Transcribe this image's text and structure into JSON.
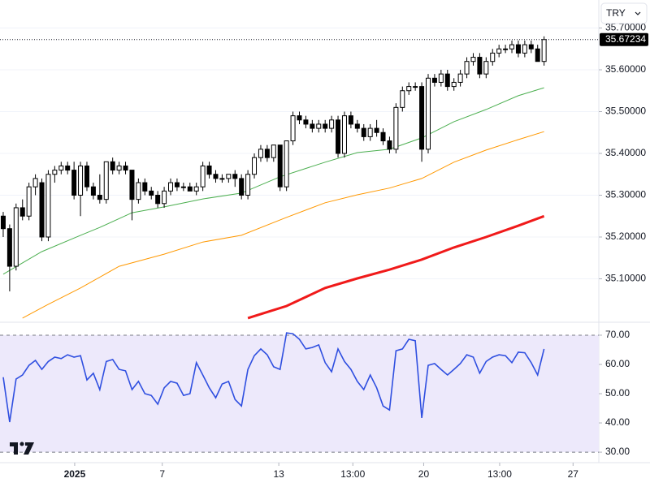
{
  "chart_data": [
    {
      "type": "candlestick",
      "currency": "TRY",
      "last_value": 35.67234,
      "up_color": "#ffffff",
      "down_color": "#000000",
      "outline_color": "#000000",
      "xlim": [
        -0.5,
        92.5
      ],
      "ylim": [
        35.0,
        35.767
      ],
      "yticks": [
        {
          "value": 35.1,
          "label": "35.10000"
        },
        {
          "value": 35.2,
          "label": "35.20000"
        },
        {
          "value": 35.3,
          "label": "35.30000"
        },
        {
          "value": 35.4,
          "label": "35.40000"
        },
        {
          "value": 35.5,
          "label": "35.50000"
        },
        {
          "value": 35.6,
          "label": "35.60000"
        },
        {
          "value": 35.7,
          "label": "35.70000"
        }
      ],
      "grid": true,
      "x": [
        0,
        1,
        2,
        3,
        4,
        5,
        6,
        7,
        8,
        9,
        10,
        11,
        12,
        13,
        14,
        15,
        16,
        17,
        18,
        19,
        20,
        21,
        22,
        23,
        24,
        25,
        26,
        27,
        28,
        29,
        30,
        31,
        32,
        33,
        34,
        35,
        36,
        37,
        38,
        39,
        40,
        41,
        42,
        43,
        44,
        45,
        46,
        47,
        48,
        49,
        50,
        51,
        52,
        53,
        54,
        55,
        56,
        57,
        58,
        59,
        60,
        61,
        62,
        63,
        64,
        65,
        66,
        67,
        68,
        69,
        70,
        71,
        72,
        73,
        74,
        75,
        76,
        77,
        78,
        79,
        80,
        81,
        82,
        83,
        84
      ],
      "open": [
        35.25,
        35.22,
        35.13,
        35.27,
        35.25,
        35.32,
        35.33,
        35.2,
        35.35,
        35.36,
        35.37,
        35.36,
        35.3,
        35.37,
        35.32,
        35.3,
        35.29,
        35.38,
        35.36,
        35.37,
        35.36,
        35.29,
        35.33,
        35.31,
        35.3,
        35.28,
        35.31,
        35.33,
        35.32,
        35.32,
        35.31,
        35.32,
        35.37,
        35.35,
        35.34,
        35.34,
        35.35,
        35.34,
        35.3,
        35.35,
        35.39,
        35.41,
        35.39,
        35.42,
        35.32,
        35.43,
        35.49,
        35.48,
        35.47,
        35.46,
        35.47,
        35.46,
        35.48,
        35.4,
        35.49,
        35.47,
        35.46,
        35.44,
        35.46,
        35.45,
        35.43,
        35.41,
        35.51,
        35.55,
        35.56,
        35.56,
        35.41,
        35.58,
        35.57,
        35.59,
        35.56,
        35.57,
        35.59,
        35.62,
        35.63,
        35.59,
        35.62,
        35.64,
        35.65,
        35.65,
        35.66,
        35.64,
        35.66,
        35.65,
        35.62
      ],
      "high": [
        35.26,
        35.23,
        35.28,
        35.29,
        35.33,
        35.35,
        35.34,
        35.36,
        35.37,
        35.38,
        35.38,
        35.38,
        35.38,
        35.38,
        35.33,
        35.35,
        35.38,
        35.39,
        35.38,
        35.38,
        35.36,
        35.34,
        35.34,
        35.32,
        35.31,
        35.32,
        35.34,
        35.34,
        35.33,
        35.33,
        35.33,
        35.38,
        35.38,
        35.36,
        35.35,
        35.35,
        35.36,
        35.35,
        35.36,
        35.4,
        35.42,
        35.42,
        35.42,
        35.42,
        35.43,
        35.5,
        35.5,
        35.49,
        35.48,
        35.48,
        35.48,
        35.49,
        35.49,
        35.5,
        35.5,
        35.48,
        35.47,
        35.47,
        35.48,
        35.46,
        35.44,
        35.52,
        35.56,
        35.57,
        35.57,
        35.57,
        35.59,
        35.59,
        35.6,
        35.6,
        35.58,
        35.6,
        35.63,
        35.64,
        35.64,
        35.63,
        35.65,
        35.66,
        35.66,
        35.67,
        35.67,
        35.67,
        35.67,
        35.66,
        35.68
      ],
      "low": [
        35.2,
        35.07,
        35.12,
        35.24,
        35.24,
        35.3,
        35.19,
        35.19,
        35.33,
        35.35,
        35.35,
        35.29,
        35.25,
        35.31,
        35.29,
        35.28,
        35.28,
        35.35,
        35.35,
        35.35,
        35.24,
        35.28,
        35.3,
        35.29,
        35.27,
        35.27,
        35.3,
        35.31,
        35.31,
        35.31,
        35.3,
        35.31,
        35.34,
        35.33,
        35.33,
        35.33,
        35.32,
        35.29,
        35.29,
        35.34,
        35.38,
        35.38,
        35.38,
        35.31,
        35.31,
        35.42,
        35.47,
        35.46,
        35.45,
        35.45,
        35.45,
        35.45,
        35.39,
        35.39,
        35.46,
        35.45,
        35.43,
        35.43,
        35.44,
        35.42,
        35.4,
        35.4,
        35.5,
        35.54,
        35.55,
        35.38,
        35.4,
        35.56,
        35.56,
        35.55,
        35.55,
        35.56,
        35.58,
        35.61,
        35.58,
        35.58,
        35.61,
        35.63,
        35.64,
        35.64,
        35.63,
        35.63,
        35.64,
        35.62,
        35.61
      ],
      "close": [
        35.22,
        35.13,
        35.27,
        35.25,
        35.32,
        35.34,
        35.2,
        35.35,
        35.36,
        35.37,
        35.36,
        35.3,
        35.37,
        35.32,
        35.3,
        35.29,
        35.38,
        35.36,
        35.37,
        35.36,
        35.29,
        35.33,
        35.31,
        35.3,
        35.28,
        35.31,
        35.33,
        35.32,
        35.32,
        35.31,
        35.32,
        35.37,
        35.35,
        35.34,
        35.34,
        35.35,
        35.34,
        35.3,
        35.35,
        35.39,
        35.41,
        35.39,
        35.42,
        35.32,
        35.43,
        35.49,
        35.48,
        35.47,
        35.46,
        35.47,
        35.46,
        35.48,
        35.4,
        35.49,
        35.47,
        35.46,
        35.44,
        35.46,
        35.45,
        35.43,
        35.41,
        35.51,
        35.55,
        35.56,
        35.56,
        35.41,
        35.58,
        35.57,
        35.59,
        35.56,
        35.57,
        35.59,
        35.62,
        35.63,
        35.59,
        35.62,
        35.64,
        35.65,
        35.65,
        35.66,
        35.64,
        35.66,
        35.65,
        35.62,
        35.67234
      ],
      "overlays": [
        {
          "color": "#4caf50",
          "width": 1,
          "x": [
            0,
            6,
            12,
            15,
            20,
            25,
            31,
            37,
            43,
            50,
            55,
            60,
            65,
            70,
            75,
            80,
            84
          ],
          "values": [
            35.111,
            35.165,
            35.204,
            35.223,
            35.258,
            35.272,
            35.291,
            35.305,
            35.344,
            35.379,
            35.402,
            35.41,
            35.437,
            35.476,
            35.505,
            35.538,
            35.557
          ]
        },
        {
          "color": "#ff9800",
          "width": 1,
          "x": [
            3,
            7,
            12,
            18,
            25,
            31,
            37,
            44,
            50,
            55,
            60,
            65,
            70,
            75,
            80,
            84
          ],
          "values": [
            35.006,
            35.039,
            35.078,
            35.13,
            35.159,
            35.188,
            35.204,
            35.247,
            35.282,
            35.301,
            35.317,
            35.34,
            35.379,
            35.408,
            35.433,
            35.452
          ]
        },
        {
          "color": "#f01a1a",
          "width": 3,
          "x": [
            38,
            44,
            50,
            55,
            60,
            65,
            70,
            75,
            80,
            84
          ],
          "values": [
            35.006,
            35.035,
            35.078,
            35.101,
            35.122,
            35.146,
            35.175,
            35.2,
            35.227,
            35.25
          ]
        }
      ]
    },
    {
      "type": "line",
      "color": "#2f4fe0",
      "band": [
        30,
        70
      ],
      "band_color": "#ede9fb",
      "xlim": [
        -0.5,
        92.5
      ],
      "ylim": [
        27.8,
        73.6
      ],
      "yticks": [
        {
          "value": 30,
          "label": "30.00"
        },
        {
          "value": 40,
          "label": "40.00"
        },
        {
          "value": 50,
          "label": "50.00"
        },
        {
          "value": 60,
          "label": "60.00"
        },
        {
          "value": 70,
          "label": "70.00"
        }
      ],
      "xticks": [
        {
          "value": 11.1,
          "label": "2025"
        },
        {
          "value": 24.7,
          "label": "7"
        },
        {
          "value": 42.8,
          "label": "13"
        },
        {
          "value": 54.3,
          "label": "13:00"
        },
        {
          "value": 65.3,
          "label": "20"
        },
        {
          "value": 77.1,
          "label": "13:00"
        },
        {
          "value": 88.5,
          "label": "27"
        }
      ],
      "x": [
        0,
        1,
        2,
        3,
        4,
        5,
        6,
        7,
        8,
        9,
        10,
        11,
        12,
        13,
        14,
        15,
        16,
        17,
        18,
        19,
        20,
        21,
        22,
        23,
        24,
        25,
        26,
        27,
        28,
        29,
        30,
        31,
        32,
        33,
        34,
        35,
        36,
        37,
        38,
        39,
        40,
        41,
        42,
        43,
        44,
        45,
        46,
        47,
        48,
        49,
        50,
        51,
        52,
        53,
        54,
        55,
        56,
        57,
        58,
        59,
        60,
        61,
        62,
        63,
        64,
        65,
        66,
        67,
        68,
        69,
        70,
        71,
        72,
        73,
        74,
        75,
        76,
        77,
        78,
        79,
        80,
        81,
        82,
        83,
        84
      ],
      "values": [
        55.6,
        40.3,
        55,
        56.4,
        59.7,
        61.4,
        58.3,
        61,
        62.5,
        62,
        63.3,
        62.5,
        63,
        54.7,
        57,
        51.4,
        61,
        61.7,
        58.3,
        57.8,
        51.4,
        54.2,
        50,
        49.4,
        46.4,
        52,
        54.2,
        53.6,
        49.4,
        50,
        60.6,
        56.4,
        52,
        48.6,
        53.3,
        54.2,
        48,
        45.8,
        58.3,
        63,
        65.3,
        63.3,
        59.2,
        58.3,
        70.8,
        70.5,
        68.6,
        65.3,
        65.8,
        66.7,
        60.6,
        57.5,
        65.3,
        61,
        58.3,
        54.2,
        51.4,
        56.4,
        52,
        45.8,
        44.4,
        64.7,
        65.3,
        68.6,
        68.1,
        41.7,
        59.7,
        60.3,
        58.3,
        56.4,
        58.3,
        60.3,
        63.3,
        62.5,
        57,
        61,
        62.5,
        63.3,
        63,
        60.6,
        64.2,
        64,
        60.6,
        56.4,
        65.3
      ]
    }
  ]
}
